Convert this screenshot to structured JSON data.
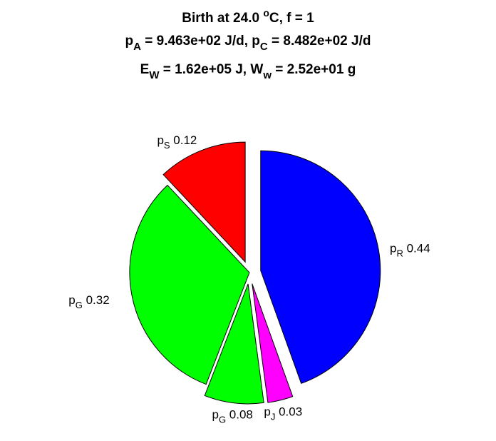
{
  "chart_data": {
    "type": "pie",
    "title": {
      "line1": {
        "text": "Birth at 24.0 ",
        "sup": "o",
        "rest": "C, f = 1"
      },
      "line2": {
        "a_base": "p",
        "a_sub": "A",
        "a_val": " = 9.463e+02 J/d, ",
        "c_base": "p",
        "c_sub": "C",
        "c_val": " = 8.482e+02 J/d"
      },
      "line3": {
        "e_base": "E",
        "e_sub": "W",
        "e_val": " = 1.62e+05 J, ",
        "w_base": "W",
        "w_sub": "w",
        "w_val": " = 2.52e+01 g"
      }
    },
    "slices": [
      {
        "id": "pR",
        "symbol": "p",
        "subscript": "R",
        "label_value": "0.44",
        "value": 0.445,
        "color": "#0000ff",
        "exploded": true
      },
      {
        "id": "pJ",
        "symbol": "p",
        "subscript": "J",
        "label_value": "0.03",
        "value": 0.034,
        "color": "#ff00ff",
        "exploded": true
      },
      {
        "id": "pG2",
        "symbol": "p",
        "subscript": "G",
        "label_value": "0.08",
        "value": 0.08,
        "color": "#00ff00",
        "exploded": true
      },
      {
        "id": "pG1",
        "symbol": "p",
        "subscript": "G",
        "label_value": "0.32",
        "value": 0.321,
        "color": "#00ff00",
        "exploded": false
      },
      {
        "id": "pS",
        "symbol": "p",
        "subscript": "S",
        "label_value": "0.12",
        "value": 0.12,
        "color": "#ff0000",
        "exploded": true
      }
    ]
  }
}
